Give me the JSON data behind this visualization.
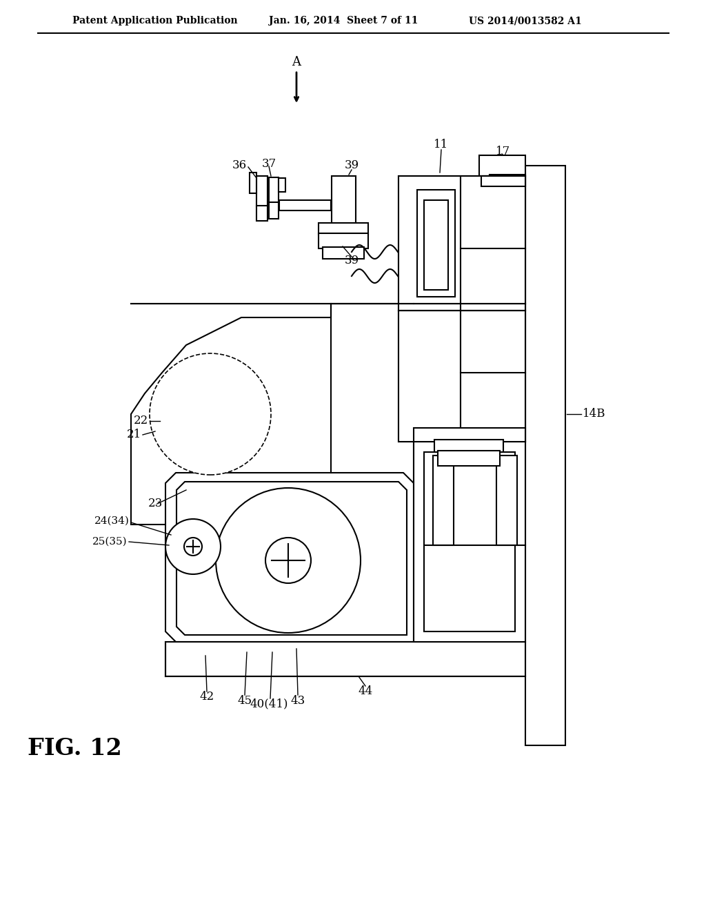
{
  "bg_color": "#ffffff",
  "line_color": "#000000",
  "header_left": "Patent Application Publication",
  "header_center": "Jan. 16, 2014  Sheet 7 of 11",
  "header_right": "US 2014/0013582 A1",
  "fig_label": "FIG. 12",
  "arrow_label": "A",
  "labels": {
    "39_top": "39",
    "11": "11",
    "17": "17",
    "37": "37",
    "36": "36",
    "39_mid": "39",
    "14B": "14B",
    "23": "23",
    "22": "22",
    "21": "21",
    "24_34": "24(34)",
    "25_35": "25(35)",
    "42": "42",
    "45": "45",
    "40_41": "40(41)",
    "43": "43",
    "44": "44"
  }
}
